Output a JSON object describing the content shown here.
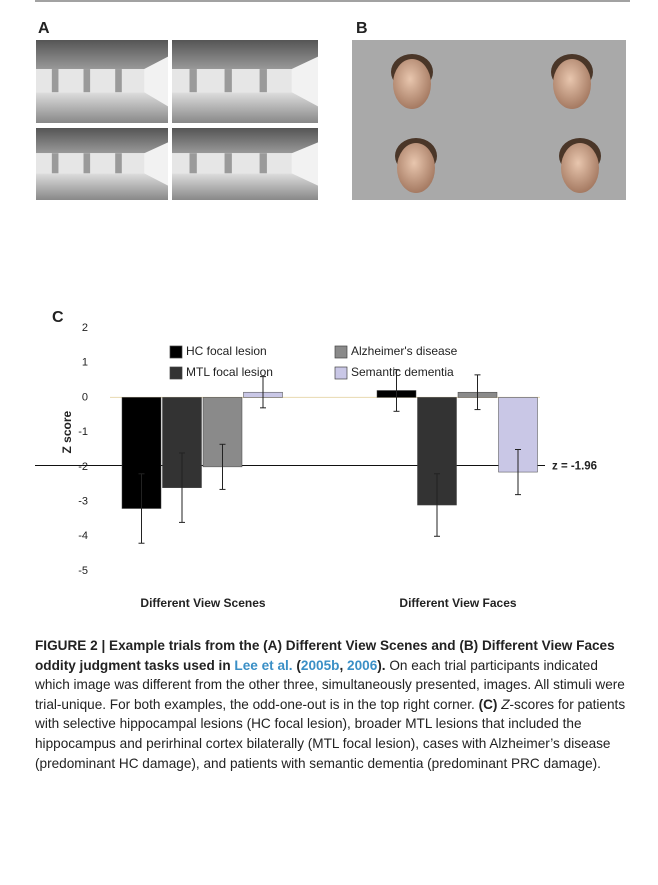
{
  "panels": {
    "a_label": "A",
    "b_label": "B",
    "c_label": "C"
  },
  "chart_data": {
    "type": "bar",
    "categories": [
      "Different View Scenes",
      "Different View Faces"
    ],
    "y_label": "Z score",
    "ylim": [
      -5,
      2
    ],
    "yticks": [
      -5,
      -4,
      -3,
      -2,
      -1,
      0,
      1,
      2
    ],
    "reference_line": {
      "value": -1.96,
      "label": "z = -1.96"
    },
    "series": [
      {
        "name": "HC focal lesion",
        "color": "#000000",
        "values": [
          -3.2,
          0.2
        ],
        "errors": [
          1.0,
          0.6
        ]
      },
      {
        "name": "MTL focal lesion",
        "color": "#333333",
        "values": [
          -2.6,
          -3.1
        ],
        "errors": [
          1.0,
          0.9
        ]
      },
      {
        "name": "Alzheimer's disease",
        "color": "#8a8a8a",
        "values": [
          -2.0,
          0.15
        ],
        "errors": [
          0.65,
          0.5
        ]
      },
      {
        "name": "Semantic dementia",
        "color": "#c9c7e6",
        "values": [
          0.15,
          -2.15
        ],
        "errors": [
          0.45,
          0.65
        ]
      }
    ]
  },
  "caption": [
    {
      "text": "FIGURE 2 | Example trials from the (A) Different View Scenes and (B) Different View Faces oddity judgment tasks used in ",
      "style": "bold"
    },
    {
      "text": "Lee et al.",
      "style": "link"
    },
    {
      "text": " (",
      "style": "bold"
    },
    {
      "text": "2005b",
      "style": "link"
    },
    {
      "text": ", ",
      "style": "bold"
    },
    {
      "text": "2006",
      "style": "link"
    },
    {
      "text": ").",
      "style": "bold"
    },
    {
      "text": " On each trial participants indicated which image was different from the other three, simultaneously presented, images. All stimuli were trial-unique. For both examples, the odd-one-out is in the top right corner. ",
      "style": "normal"
    },
    {
      "text": "(C) ",
      "style": "bold"
    },
    {
      "text": "Z",
      "style": "italic"
    },
    {
      "text": "-scores for patients with selective hippocampal lesions (HC focal lesion), broader MTL lesions that included the hippocampus and perirhinal cortex bilaterally (MTL focal lesion), cases with Alzheimer’s disease (predominant HC damage), and patients with semantic dementia (predominant PRC damage).",
      "style": "normal"
    }
  ]
}
